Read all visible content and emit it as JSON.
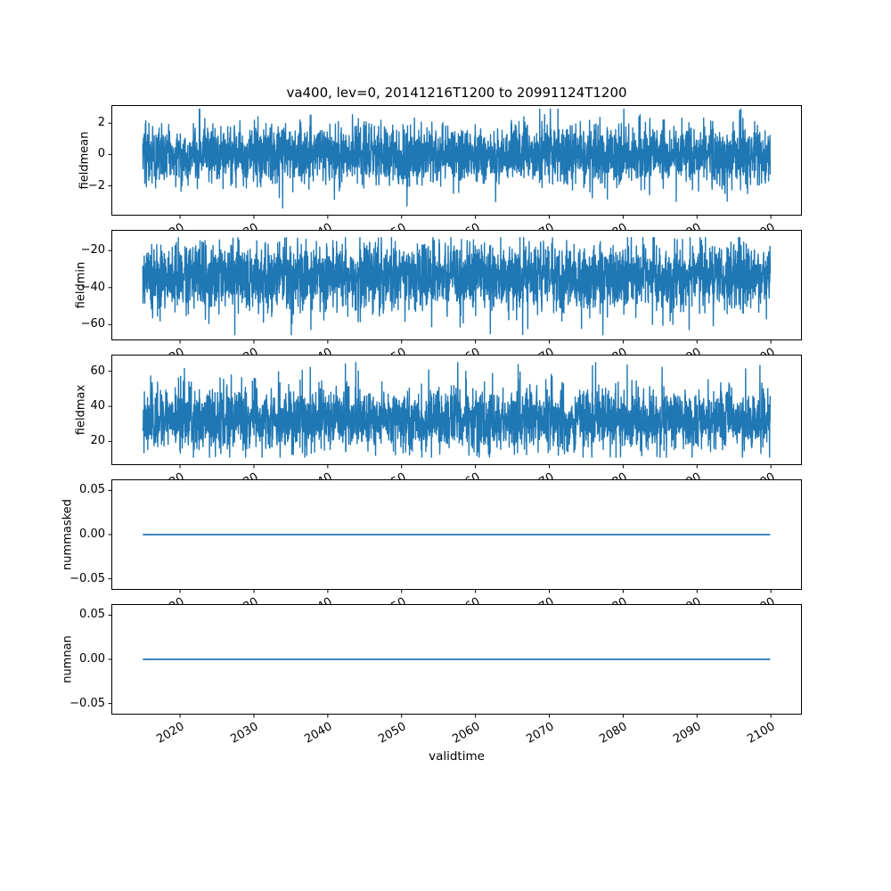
{
  "chart_data": {
    "type": "line",
    "title": "va400, lev=0, 20141216T1200 to 20991124T1200",
    "xlabel": "validtime",
    "line_color": "#1f77b4",
    "background": "#ffffff",
    "grid": false,
    "legend": null,
    "x": {
      "start": 2014.96,
      "end": 2099.9,
      "xlim": [
        2010.7,
        2104.2
      ],
      "ticks": [
        {
          "v": 2020,
          "label": "2020"
        },
        {
          "v": 2030,
          "label": "2030"
        },
        {
          "v": 2040,
          "label": "2040"
        },
        {
          "v": 2050,
          "label": "2050"
        },
        {
          "v": 2060,
          "label": "2060"
        },
        {
          "v": 2070,
          "label": "2070"
        },
        {
          "v": 2080,
          "label": "2080"
        },
        {
          "v": 2090,
          "label": "2090"
        },
        {
          "v": 2100,
          "label": "2100"
        }
      ]
    },
    "subplots": [
      {
        "ylabel": "fieldmean",
        "ylim": [
          -3.9,
          3.15
        ],
        "yticks": [
          {
            "v": -2,
            "label": "−2"
          },
          {
            "v": 0,
            "label": "0"
          },
          {
            "v": 2,
            "label": "2"
          }
        ],
        "signal": {
          "kind": "noise",
          "clip": [
            -3.62,
            2.9
          ],
          "mixture": [
            {
              "w": 0.95,
              "mean": 0,
              "std": 0.9
            },
            {
              "w": 0.05,
              "mean": 0,
              "std": 1.4
            }
          ]
        },
        "points": 3200,
        "seed": 42
      },
      {
        "ylabel": "fieldmin",
        "ylim": [
          -68.5,
          -8.8
        ],
        "yticks": [
          {
            "v": -60,
            "label": "−60"
          },
          {
            "v": -40,
            "label": "−40"
          },
          {
            "v": -20,
            "label": "−20"
          }
        ],
        "signal": {
          "kind": "noise",
          "clip": [
            -65.5,
            -13
          ],
          "mixture": [
            {
              "w": 0.94,
              "mean": -34,
              "std": 8.5
            },
            {
              "w": 0.06,
              "mean": -38,
              "std": 13
            }
          ]
        },
        "points": 3200,
        "seed": 1337
      },
      {
        "ylabel": "fieldmax",
        "ylim": [
          6.5,
          69.5
        ],
        "yticks": [
          {
            "v": 20,
            "label": "20"
          },
          {
            "v": 40,
            "label": "40"
          },
          {
            "v": 60,
            "label": "60"
          }
        ],
        "signal": {
          "kind": "noise",
          "clip": [
            11,
            65
          ],
          "mixture": [
            {
              "w": 0.94,
              "mean": 32,
              "std": 8.5
            },
            {
              "w": 0.06,
              "mean": 36,
              "std": 13
            }
          ]
        },
        "points": 3200,
        "seed": 2024
      },
      {
        "ylabel": "nummasked",
        "ylim": [
          -0.0625,
          0.0625
        ],
        "yticks": [
          {
            "v": -0.05,
            "label": "−0.05"
          },
          {
            "v": 0,
            "label": "0.00"
          },
          {
            "v": 0.05,
            "label": "0.05"
          }
        ],
        "signal": {
          "kind": "constant",
          "value": 0
        },
        "points": 2,
        "seed": 7
      },
      {
        "ylabel": "numnan",
        "ylim": [
          -0.0625,
          0.0625
        ],
        "yticks": [
          {
            "v": -0.05,
            "label": "−0.05"
          },
          {
            "v": 0,
            "label": "0.00"
          },
          {
            "v": 0.05,
            "label": "0.05"
          }
        ],
        "signal": {
          "kind": "constant",
          "value": 0
        },
        "points": 2,
        "seed": 8
      }
    ]
  }
}
